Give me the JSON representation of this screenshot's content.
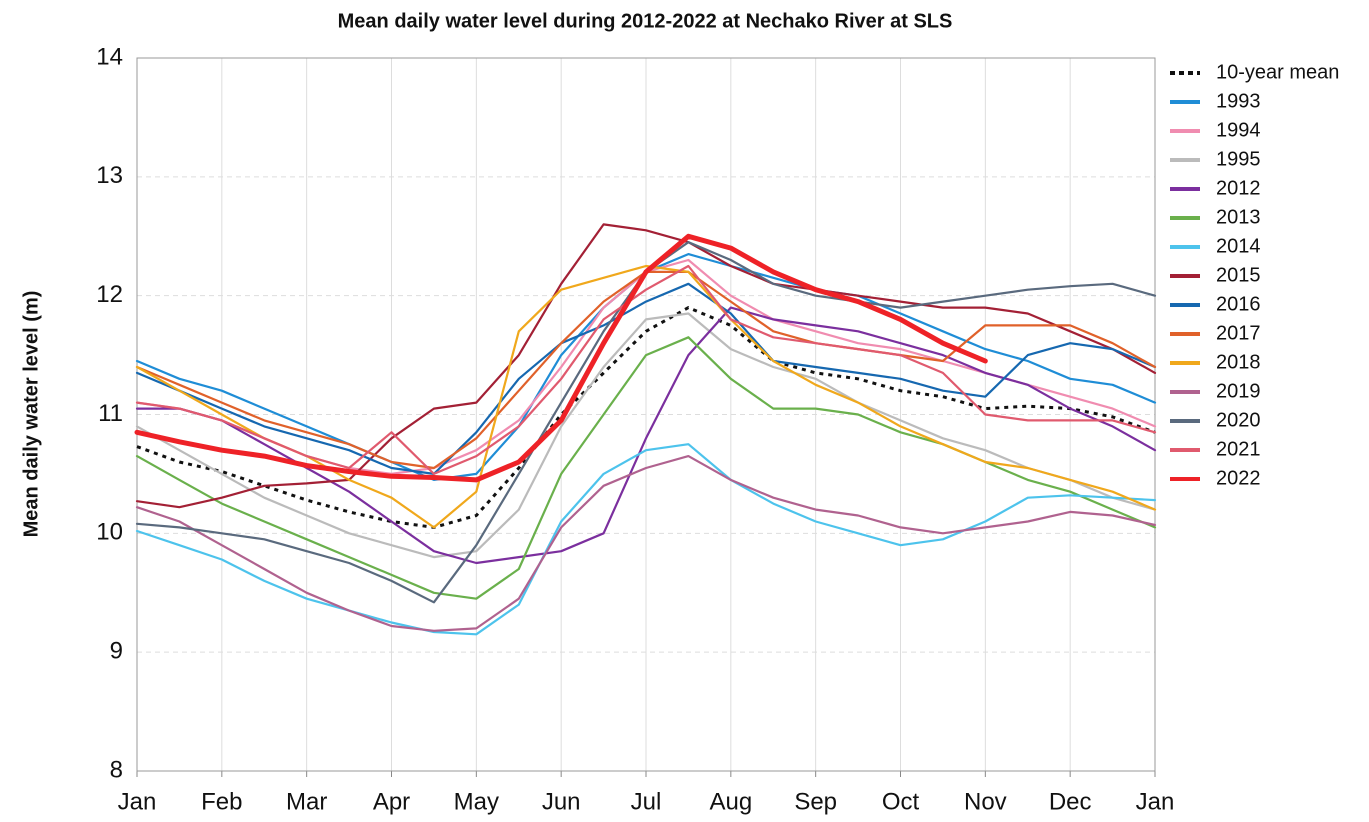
{
  "chart_data": {
    "type": "line",
    "title": "Mean daily water level during 2012-2022 at Nechako River at SLS",
    "y_label": "Mean daily water level (m)",
    "categories": [
      "Jan",
      null,
      "Feb",
      null,
      "Mar",
      null,
      "Apr",
      null,
      "May",
      null,
      "Jun",
      null,
      "Jul",
      null,
      "Aug",
      null,
      "Sep",
      null,
      "Oct",
      null,
      "Nov",
      null,
      "Dec",
      null,
      "Jan"
    ],
    "ylim": [
      8,
      14
    ],
    "yticks": [
      8,
      9,
      10,
      11,
      12,
      13,
      14
    ],
    "grid": true,
    "legend": "right",
    "series": [
      {
        "name": "10-year mean",
        "color": "#111111",
        "linestyle": "dotted",
        "values": [
          10.73,
          10.6,
          10.52,
          10.4,
          10.28,
          10.18,
          10.1,
          10.05,
          10.15,
          10.55,
          11.0,
          11.35,
          11.7,
          11.9,
          11.75,
          11.45,
          11.35,
          11.3,
          11.2,
          11.15,
          11.05,
          11.07,
          11.05,
          10.98,
          10.85
        ]
      },
      {
        "name": "1993",
        "color": "#1f8dd6",
        "values": [
          11.45,
          11.3,
          11.2,
          11.05,
          10.9,
          10.75,
          10.6,
          10.45,
          10.5,
          10.9,
          11.5,
          11.9,
          12.2,
          12.35,
          12.25,
          12.15,
          12.05,
          12.0,
          11.85,
          11.7,
          11.55,
          11.45,
          11.3,
          11.25,
          11.1
        ]
      },
      {
        "name": "1994",
        "color": "#f08cb0",
        "values": [
          11.1,
          11.05,
          10.95,
          10.8,
          10.65,
          10.55,
          10.5,
          10.55,
          10.7,
          10.95,
          11.4,
          11.9,
          12.2,
          12.3,
          12.0,
          11.8,
          11.7,
          11.6,
          11.55,
          11.45,
          11.35,
          11.25,
          11.15,
          11.05,
          10.9
        ]
      },
      {
        "name": "1995",
        "color": "#bbbbbb",
        "values": [
          10.9,
          10.7,
          10.5,
          10.3,
          10.15,
          10.0,
          9.9,
          9.8,
          9.85,
          10.2,
          10.9,
          11.4,
          11.8,
          11.85,
          11.55,
          11.4,
          11.3,
          11.1,
          10.95,
          10.8,
          10.7,
          10.55,
          10.45,
          10.3,
          10.2
        ]
      },
      {
        "name": "2012",
        "color": "#7b2f9e",
        "values": [
          11.05,
          11.05,
          10.95,
          10.75,
          10.55,
          10.35,
          10.1,
          9.85,
          9.75,
          9.8,
          9.85,
          10.0,
          10.8,
          11.5,
          11.9,
          11.8,
          11.75,
          11.7,
          11.6,
          11.5,
          11.35,
          11.25,
          11.05,
          10.9,
          10.7
        ]
      },
      {
        "name": "2013",
        "color": "#6ab04c",
        "values": [
          10.65,
          10.45,
          10.25,
          10.1,
          9.95,
          9.8,
          9.65,
          9.5,
          9.45,
          9.7,
          10.5,
          11.0,
          11.5,
          11.65,
          11.3,
          11.05,
          11.05,
          11.0,
          10.85,
          10.75,
          10.6,
          10.45,
          10.35,
          10.2,
          10.05
        ]
      },
      {
        "name": "2014",
        "color": "#4dc3ec",
        "values": [
          10.02,
          9.9,
          9.78,
          9.6,
          9.45,
          9.35,
          9.25,
          9.17,
          9.15,
          9.4,
          10.1,
          10.5,
          10.7,
          10.75,
          10.45,
          10.25,
          10.1,
          10.0,
          9.9,
          9.95,
          10.1,
          10.3,
          10.32,
          10.3,
          10.28
        ]
      },
      {
        "name": "2015",
        "color": "#a32035",
        "values": [
          10.27,
          10.22,
          10.3,
          10.4,
          10.42,
          10.45,
          10.8,
          11.05,
          11.1,
          11.5,
          12.1,
          12.6,
          12.55,
          12.45,
          12.25,
          12.1,
          12.05,
          12.0,
          11.95,
          11.9,
          11.9,
          11.85,
          11.7,
          11.55,
          11.35
        ]
      },
      {
        "name": "2016",
        "color": "#1668b0",
        "values": [
          11.35,
          11.2,
          11.05,
          10.9,
          10.8,
          10.7,
          10.55,
          10.5,
          10.85,
          11.3,
          11.6,
          11.75,
          11.95,
          12.1,
          11.85,
          11.45,
          11.4,
          11.35,
          11.3,
          11.2,
          11.15,
          11.5,
          11.6,
          11.55,
          11.4
        ]
      },
      {
        "name": "2017",
        "color": "#e0612a",
        "values": [
          11.4,
          11.25,
          11.1,
          10.95,
          10.85,
          10.75,
          10.6,
          10.55,
          10.8,
          11.2,
          11.6,
          11.95,
          12.2,
          12.2,
          11.95,
          11.7,
          11.6,
          11.55,
          11.5,
          11.45,
          11.75,
          11.75,
          11.75,
          11.6,
          11.4
        ]
      },
      {
        "name": "2018",
        "color": "#f0a81c",
        "values": [
          11.4,
          11.2,
          11.0,
          10.8,
          10.65,
          10.45,
          10.3,
          10.05,
          10.35,
          11.7,
          12.05,
          12.15,
          12.25,
          12.2,
          11.8,
          11.45,
          11.25,
          11.1,
          10.9,
          10.75,
          10.6,
          10.55,
          10.45,
          10.35,
          10.2
        ]
      },
      {
        "name": "2019",
        "color": "#b0628f",
        "values": [
          10.22,
          10.1,
          9.9,
          9.7,
          9.5,
          9.35,
          9.22,
          9.18,
          9.2,
          9.45,
          10.05,
          10.4,
          10.55,
          10.65,
          10.45,
          10.3,
          10.2,
          10.15,
          10.05,
          10.0,
          10.05,
          10.1,
          10.18,
          10.15,
          10.07
        ]
      },
      {
        "name": "2020",
        "color": "#5a6a7e",
        "values": [
          10.08,
          10.05,
          10.0,
          9.95,
          9.85,
          9.75,
          9.6,
          9.42,
          9.9,
          10.5,
          11.1,
          11.7,
          12.2,
          12.45,
          12.3,
          12.1,
          12.0,
          11.95,
          11.9,
          11.95,
          12.0,
          12.05,
          12.08,
          12.1,
          12.0
        ]
      },
      {
        "name": "2021",
        "color": "#e05a6e",
        "values": [
          11.1,
          11.05,
          10.95,
          10.8,
          10.65,
          10.55,
          10.85,
          10.5,
          10.65,
          10.9,
          11.3,
          11.8,
          12.05,
          12.25,
          11.8,
          11.65,
          11.6,
          11.55,
          11.5,
          11.35,
          11.0,
          10.95,
          10.95,
          10.95,
          10.85
        ]
      },
      {
        "name": "2022",
        "color": "#ee2227",
        "linewidth": 5,
        "values": [
          10.85,
          10.77,
          10.7,
          10.65,
          10.57,
          10.52,
          10.48,
          10.47,
          10.45,
          10.6,
          10.95,
          11.6,
          12.2,
          12.5,
          12.4,
          12.2,
          12.05,
          11.95,
          11.8,
          11.6,
          11.45,
          null,
          null,
          null,
          null
        ]
      }
    ]
  }
}
